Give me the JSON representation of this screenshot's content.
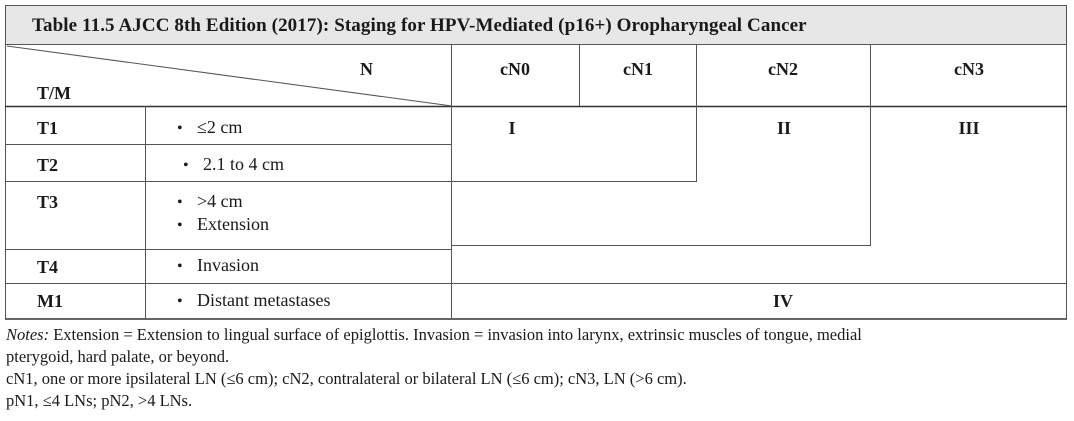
{
  "table": {
    "title": "Table 11.5 AJCC 8th Edition (2017): Staging for HPV-Mediated (p16+) Oropharyngeal Cancer",
    "corner_n": "N",
    "corner_tm": "T/M",
    "columns": [
      "cN0",
      "cN1",
      "cN2",
      "cN3"
    ],
    "rows": [
      {
        "label": "T1",
        "criteria": [
          "≤2 cm"
        ]
      },
      {
        "label": "T2",
        "criteria": [
          "2.1 to 4 cm"
        ]
      },
      {
        "label": "T3",
        "criteria": [
          ">4 cm",
          "Extension"
        ]
      },
      {
        "label": "T4",
        "criteria": [
          "Invasion"
        ]
      },
      {
        "label": "M1",
        "criteria": [
          "Distant metastases"
        ]
      }
    ],
    "stages": {
      "s1": "I",
      "s2": "II",
      "s3": "III",
      "s4": "IV"
    }
  },
  "notes": {
    "prefix": "Notes:",
    "line1": " Extension = Extension to lingual surface of epiglottis. Invasion = invasion into larynx, extrinsic muscles of tongue, medial",
    "line2": "pterygoid, hard palate, or beyond.",
    "line3": "cN1, one or more ipsilateral LN (≤6 cm); cN2, contralateral or bilateral LN (≤6 cm); cN3, LN (>6 cm).",
    "line4": "pN1, ≤4 LNs; pN2, >4 LNs."
  }
}
